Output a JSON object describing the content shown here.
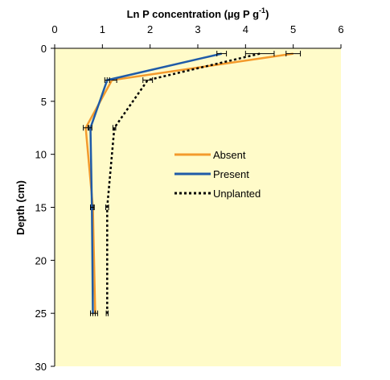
{
  "chart_data": {
    "type": "line",
    "title": "",
    "xlabel": "Ln P concentration (µg P g",
    "xlabel_superscript": "-1",
    "xlabel_suffix": ")",
    "ylabel": "Depth (cm)",
    "xlim": [
      0,
      6
    ],
    "ylim": [
      0,
      30
    ],
    "y_inverted": true,
    "x_axis_position": "top",
    "x_ticks": [
      "0",
      "1",
      "2",
      "3",
      "4",
      "5",
      "6"
    ],
    "y_ticks": [
      "0",
      "5",
      "10",
      "15",
      "20",
      "25",
      "30"
    ],
    "grid": false,
    "plot_background": "#FFFBC9",
    "legend_position": "right-middle",
    "series": [
      {
        "name": "Absent",
        "color": "#F39A2C",
        "line_style": "solid",
        "depth": [
          0.5,
          3,
          7.5,
          15,
          25
        ],
        "value": [
          5.0,
          1.2,
          0.65,
          0.8,
          0.85
        ],
        "error": [
          0.15,
          0.1,
          0.05,
          0.03,
          0.05
        ]
      },
      {
        "name": "Present",
        "color": "#1F5BA8",
        "line_style": "solid",
        "depth": [
          0.5,
          3,
          7.5,
          15,
          25
        ],
        "value": [
          3.5,
          1.1,
          0.75,
          0.78,
          0.8
        ],
        "error": [
          0.1,
          0.05,
          0.03,
          0.03,
          0.05
        ]
      },
      {
        "name": "Unplanted",
        "color": "#000000",
        "line_style": "dotted",
        "depth": [
          0.5,
          3,
          7.5,
          15,
          25
        ],
        "value": [
          4.3,
          1.95,
          1.25,
          1.1,
          1.1
        ],
        "error": [
          0.3,
          0.1,
          0.03,
          0.03,
          0.02
        ]
      }
    ]
  }
}
